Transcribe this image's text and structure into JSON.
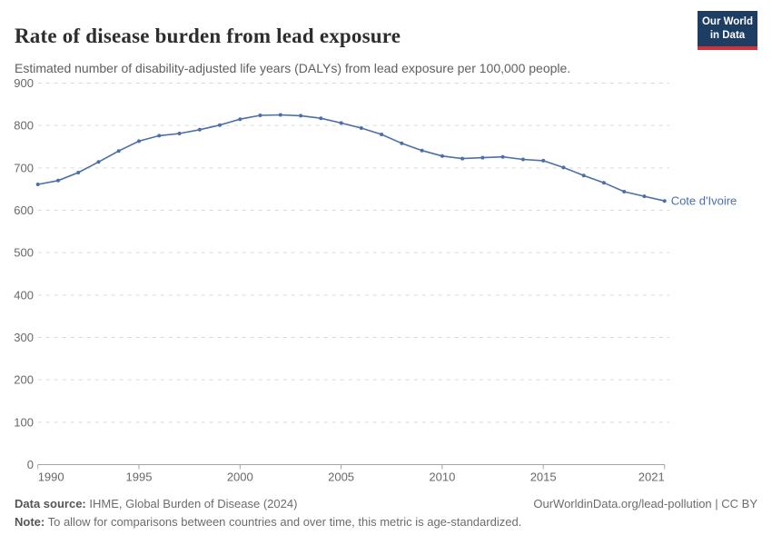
{
  "header": {
    "title": "Rate of disease burden from lead exposure",
    "subtitle": "Estimated number of disability-adjusted life years (DALYs) from lead exposure per 100,000 people.",
    "logo": {
      "line1": "Our World",
      "line2": "in Data",
      "bg_color": "#1d3d63",
      "accent_color": "#dc2c34"
    }
  },
  "chart_data": {
    "type": "line",
    "title": "Rate of disease burden from lead exposure",
    "xlabel": "",
    "ylabel": "",
    "xlim": [
      1990,
      2021
    ],
    "ylim": [
      0,
      900
    ],
    "x_ticks": [
      1990,
      1995,
      2000,
      2005,
      2010,
      2015,
      2021
    ],
    "y_ticks": [
      0,
      100,
      200,
      300,
      400,
      500,
      600,
      700,
      800,
      900
    ],
    "grid": "horizontal-dashed",
    "legend_position": "end-of-line-label",
    "series": [
      {
        "name": "Cote d'Ivoire",
        "color": "#4c6ea9",
        "x": [
          1990,
          1991,
          1992,
          1993,
          1994,
          1995,
          1996,
          1997,
          1998,
          1999,
          2000,
          2001,
          2002,
          2003,
          2004,
          2005,
          2006,
          2007,
          2008,
          2009,
          2010,
          2011,
          2012,
          2013,
          2014,
          2015,
          2016,
          2017,
          2018,
          2019,
          2020,
          2021
        ],
        "values": [
          661,
          670,
          689,
          714,
          740,
          763,
          776,
          781,
          790,
          801,
          815,
          824,
          825,
          823,
          817,
          806,
          794,
          779,
          758,
          741,
          728,
          722,
          724,
          726,
          720,
          717,
          701,
          682,
          665,
          644,
          633,
          622
        ]
      }
    ]
  },
  "footer": {
    "source_label": "Data source:",
    "source_text": " IHME, Global Burden of Disease (2024)",
    "link_text": "OurWorldinData.org/lead-pollution | CC BY",
    "note_label": "Note:",
    "note_text": " To allow for comparisons between countries and over time, this metric is age-standardized."
  }
}
